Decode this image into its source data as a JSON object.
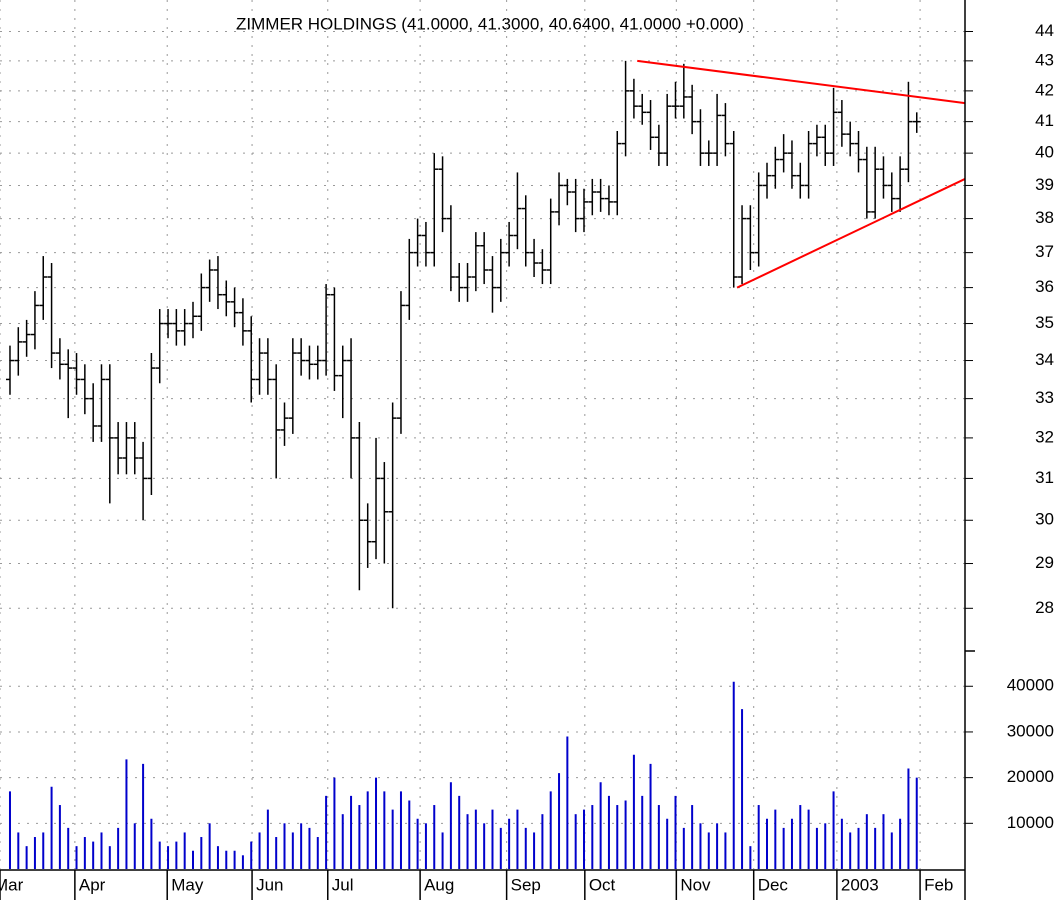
{
  "chart_data": [
    {
      "type": "ohlc",
      "title": "ZIMMER HOLDINGS (41.0000, 41.3000, 40.6400, 41.0000 +0.000)",
      "color": "#000000",
      "open": [
        33.5,
        34.0,
        34.5,
        34.7,
        35.5,
        36.3,
        34.2,
        33.9,
        33.8,
        33.5,
        33.0,
        32.3,
        33.5,
        32.0,
        31.5,
        32.0,
        31.5,
        31.0,
        33.8,
        35.0,
        35.0,
        34.8,
        35.0,
        35.2,
        36.0,
        36.5,
        35.8,
        35.6,
        35.3,
        34.8,
        33.5,
        34.2,
        33.5,
        32.2,
        32.5,
        34.2,
        34.0,
        33.9,
        34.0,
        35.8,
        33.6,
        34.0,
        32.0,
        30.0,
        29.5,
        31.0,
        30.2,
        32.5,
        35.5,
        37.0,
        37.5,
        37.0,
        39.5,
        38.0,
        36.3,
        36.0,
        36.3,
        37.2,
        36.5,
        36.0,
        37.0,
        37.5,
        38.3,
        37.0,
        36.7,
        36.5,
        38.2,
        39.0,
        38.8,
        38.0,
        38.5,
        38.8,
        38.6,
        38.5,
        40.3,
        42.0,
        41.5,
        41.3,
        40.5,
        40.0,
        41.5,
        41.5,
        41.8,
        41.0,
        40.0,
        40.0,
        41.2,
        40.3,
        36.3,
        38.0,
        37.0,
        39.0,
        39.3,
        39.8,
        40.0,
        39.3,
        39.0,
        40.3,
        40.5,
        40.0,
        41.3,
        40.6,
        40.3,
        39.8,
        38.2,
        39.5,
        39.0,
        38.6,
        39.5,
        41.0
      ],
      "high": [
        34.4,
        34.9,
        35.1,
        35.9,
        36.9,
        36.7,
        34.6,
        34.3,
        34.2,
        33.9,
        33.4,
        33.9,
        33.9,
        32.4,
        32.4,
        32.4,
        31.9,
        34.2,
        35.4,
        35.4,
        35.4,
        35.4,
        35.6,
        36.4,
        36.8,
        36.9,
        36.2,
        36.0,
        35.7,
        35.2,
        34.6,
        34.6,
        33.9,
        32.9,
        34.6,
        34.6,
        34.4,
        34.4,
        36.1,
        36.0,
        34.4,
        34.6,
        32.4,
        30.4,
        32.0,
        31.4,
        32.9,
        35.9,
        37.4,
        38.0,
        37.9,
        40.0,
        39.9,
        38.4,
        36.7,
        36.7,
        37.6,
        37.6,
        36.9,
        37.4,
        37.9,
        39.4,
        38.7,
        37.4,
        37.1,
        38.6,
        39.4,
        39.2,
        39.2,
        38.9,
        39.2,
        39.2,
        39.0,
        40.7,
        43.0,
        42.4,
        41.9,
        41.7,
        40.9,
        41.9,
        42.3,
        42.9,
        42.2,
        41.4,
        40.4,
        41.9,
        41.6,
        40.7,
        38.4,
        38.4,
        39.4,
        39.7,
        40.2,
        40.6,
        40.4,
        39.7,
        40.7,
        40.9,
        40.9,
        42.1,
        41.7,
        41.0,
        40.7,
        40.2,
        40.2,
        39.9,
        39.4,
        39.9,
        42.3,
        41.3
      ],
      "low": [
        33.1,
        33.6,
        34.1,
        34.3,
        35.1,
        33.8,
        33.5,
        32.5,
        33.1,
        32.6,
        31.9,
        31.9,
        30.4,
        31.1,
        31.1,
        31.1,
        30.0,
        30.6,
        33.4,
        34.6,
        34.4,
        34.4,
        34.6,
        34.8,
        35.6,
        35.4,
        35.2,
        34.9,
        34.4,
        32.9,
        33.1,
        33.1,
        31.0,
        31.8,
        32.1,
        33.6,
        33.5,
        33.5,
        33.6,
        33.2,
        32.5,
        31.0,
        28.4,
        28.9,
        29.1,
        29.0,
        28.0,
        32.1,
        35.1,
        36.6,
        36.6,
        36.6,
        37.6,
        35.9,
        35.6,
        35.6,
        35.9,
        36.1,
        35.3,
        35.6,
        36.6,
        37.1,
        36.6,
        36.3,
        36.1,
        36.1,
        37.8,
        38.4,
        37.6,
        37.6,
        38.1,
        38.2,
        38.1,
        38.1,
        39.9,
        41.1,
        40.9,
        40.1,
        39.6,
        39.6,
        41.1,
        41.1,
        40.6,
        39.6,
        39.6,
        39.6,
        39.9,
        36.0,
        36.1,
        36.5,
        36.6,
        38.6,
        38.9,
        39.4,
        38.9,
        38.6,
        38.6,
        39.9,
        39.6,
        39.6,
        40.2,
        39.9,
        39.4,
        38.0,
        38.0,
        38.6,
        38.2,
        38.2,
        39.1,
        40.64
      ],
      "close": [
        34.0,
        34.5,
        34.7,
        35.5,
        36.3,
        34.2,
        33.9,
        33.8,
        33.5,
        33.0,
        32.3,
        33.5,
        32.0,
        31.5,
        32.0,
        31.5,
        31.0,
        33.8,
        35.0,
        35.0,
        34.8,
        35.0,
        35.2,
        36.0,
        36.5,
        35.8,
        35.6,
        35.3,
        34.8,
        33.5,
        34.2,
        33.5,
        32.2,
        32.5,
        34.2,
        34.0,
        33.9,
        34.0,
        35.8,
        33.6,
        34.0,
        32.0,
        30.0,
        29.5,
        31.0,
        30.2,
        32.5,
        35.5,
        37.0,
        37.5,
        37.0,
        39.5,
        38.0,
        36.3,
        36.0,
        36.3,
        37.2,
        36.5,
        36.0,
        37.0,
        37.5,
        38.3,
        37.0,
        36.7,
        36.5,
        38.2,
        39.0,
        38.8,
        38.0,
        38.5,
        38.8,
        38.6,
        38.5,
        40.3,
        42.0,
        41.5,
        41.3,
        40.5,
        40.0,
        41.5,
        41.5,
        41.8,
        41.0,
        40.0,
        40.0,
        41.2,
        40.3,
        36.3,
        38.0,
        37.0,
        39.0,
        39.3,
        39.8,
        40.0,
        39.3,
        39.0,
        40.3,
        40.5,
        40.0,
        41.3,
        40.6,
        40.3,
        39.8,
        38.2,
        39.5,
        39.0,
        38.6,
        39.5,
        41.0,
        41.0
      ],
      "xlim": [
        -1.2,
        114.8
      ],
      "xticks": [
        {
          "value": -1.2,
          "label": "Mar"
        },
        {
          "value": 7.8,
          "label": "Apr"
        },
        {
          "value": 18.9,
          "label": "May"
        },
        {
          "value": 29.1,
          "label": "Jun"
        },
        {
          "value": 38.2,
          "label": "Jul"
        },
        {
          "value": 49.3,
          "label": "Aug"
        },
        {
          "value": 59.7,
          "label": "Sep"
        },
        {
          "value": 69.1,
          "label": "Oct"
        },
        {
          "value": 80.1,
          "label": "Nov"
        },
        {
          "value": 89.4,
          "label": "Dec"
        },
        {
          "value": 99.4,
          "label": "2003"
        },
        {
          "value": 109.4,
          "label": "Feb"
        }
      ],
      "ylim": [
        27.1,
        45.1
      ],
      "log": true,
      "yticks": [
        28,
        29,
        30,
        31,
        32,
        33,
        34,
        35,
        36,
        37,
        38,
        39,
        40,
        41,
        42,
        43,
        44
      ],
      "grid": true,
      "trendlines": [
        {
          "x": [
            75.4,
            114.8
          ],
          "y": [
            43.0,
            41.6
          ]
        },
        {
          "x": [
            87.4,
            114.8
          ],
          "y": [
            36.0,
            39.2
          ]
        }
      ],
      "trendline_color": "#ff0000"
    },
    {
      "type": "bar",
      "color": "#0000cc",
      "values": [
        17000,
        8000,
        5000,
        7000,
        8000,
        18000,
        14000,
        9000,
        5000,
        7000,
        6000,
        8000,
        5000,
        9000,
        24000,
        10000,
        23000,
        11000,
        6000,
        5000,
        6000,
        8000,
        4000,
        7000,
        10000,
        5000,
        4000,
        4000,
        3000,
        6000,
        8000,
        13000,
        7000,
        10000,
        8000,
        10000,
        9000,
        7000,
        16000,
        20000,
        12000,
        16000,
        14000,
        17000,
        20000,
        17000,
        13000,
        17000,
        15000,
        11000,
        10000,
        14000,
        8000,
        19000,
        16000,
        12000,
        13000,
        10000,
        13000,
        9000,
        11000,
        13000,
        9000,
        8000,
        12000,
        17000,
        21000,
        29000,
        12000,
        13000,
        14000,
        19000,
        16000,
        14000,
        15000,
        25000,
        16000,
        23000,
        14000,
        11000,
        16000,
        9000,
        14000,
        10000,
        8000,
        10000,
        8000,
        41000,
        35000,
        5000,
        14000,
        11000,
        13000,
        9000,
        11000,
        14000,
        13000,
        9000,
        10000,
        17000,
        11000,
        8000,
        9000,
        12000,
        9000,
        12000,
        8000,
        11000,
        22000,
        20000
      ],
      "xlim": [
        -1.2,
        114.8
      ],
      "ylim": [
        0,
        47500
      ],
      "yticks": [
        10000,
        20000,
        30000,
        40000
      ],
      "grid": true
    }
  ]
}
